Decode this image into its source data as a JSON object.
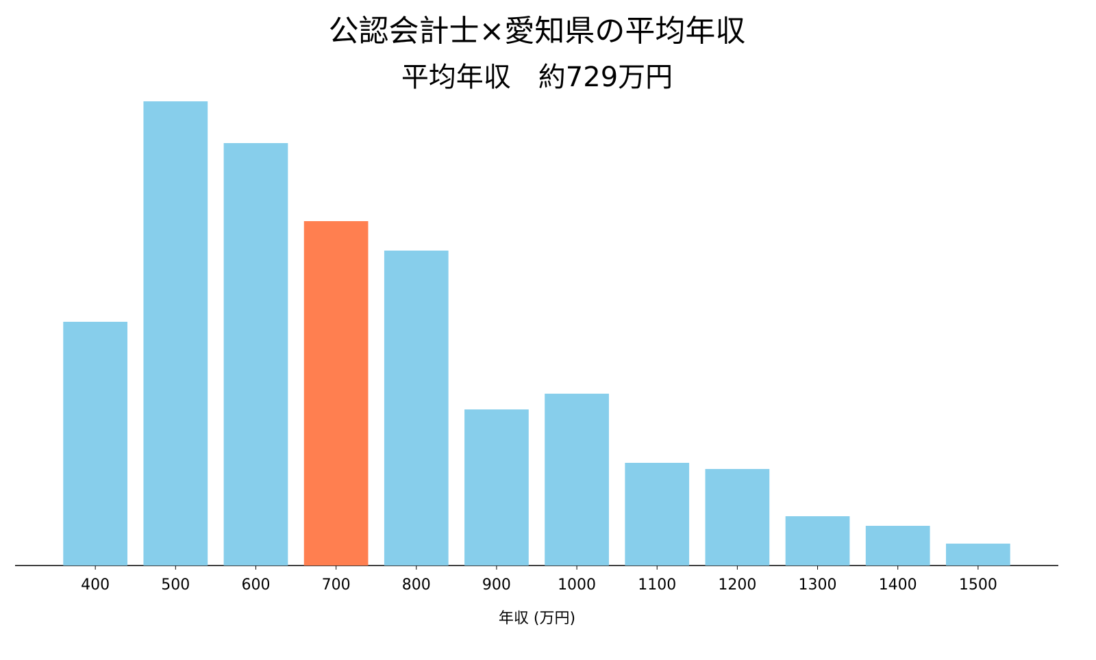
{
  "chart_data": {
    "type": "bar",
    "title": "公認会計士×愛知県の平均年収",
    "subtitle": "平均年収　約729万円",
    "x_label": "年収 (万円)",
    "categories": [
      "400",
      "500",
      "600",
      "700",
      "800",
      "900",
      "1000",
      "1100",
      "1200",
      "1300",
      "1400",
      "1500"
    ],
    "values": [
      356,
      678,
      617,
      503,
      460,
      228,
      251,
      150,
      141,
      72,
      58,
      32
    ],
    "colors": [
      "#87ceeb",
      "#87ceeb",
      "#87ceeb",
      "#ff7f50",
      "#87ceeb",
      "#87ceeb",
      "#87ceeb",
      "#87ceeb",
      "#87ceeb",
      "#87ceeb",
      "#87ceeb",
      "#87ceeb"
    ],
    "ylim": [
      0,
      712
    ]
  }
}
